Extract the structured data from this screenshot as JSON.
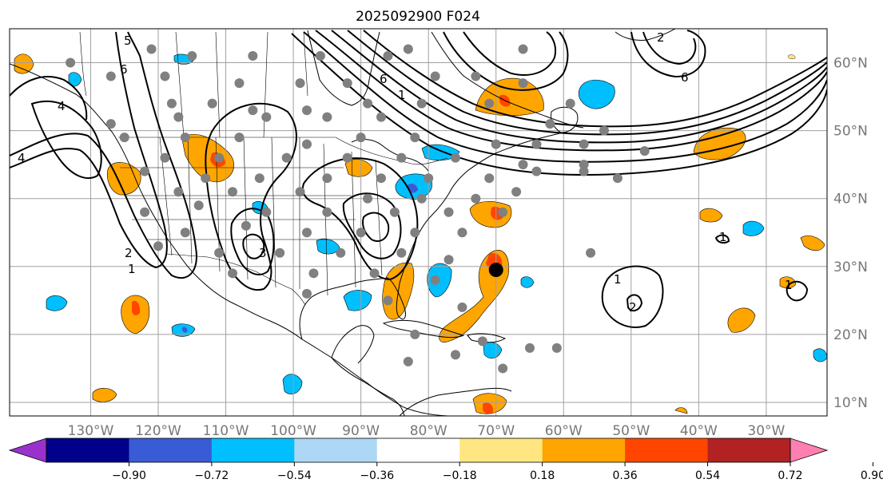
{
  "title": "2025092900 F024",
  "map": {
    "lon_range": [
      -142,
      -21
    ],
    "lat_range": [
      8,
      65
    ],
    "lat_labels": [
      "10°N",
      "20°N",
      "30°N",
      "40°N",
      "50°N",
      "60°N"
    ],
    "lat_values": [
      10,
      20,
      30,
      40,
      50,
      60
    ],
    "lon_labels": [
      "130°W",
      "120°W",
      "110°W",
      "100°W",
      "90°W",
      "80°W",
      "70°W",
      "60°W",
      "50°W",
      "40°W",
      "30°W"
    ],
    "lon_values": [
      -130,
      -120,
      -110,
      -100,
      -90,
      -80,
      -70,
      -60,
      -50,
      -40,
      -30
    ],
    "contour_labels": [
      "4",
      "6",
      "5",
      "2",
      "1",
      "3",
      "6",
      "1",
      "6",
      "2",
      "1",
      "1",
      "2",
      "1",
      "4"
    ],
    "storm_center": {
      "lon": -70,
      "lat": 29.5
    }
  },
  "colorbar": {
    "ticks": [
      "−0.90",
      "−0.72",
      "−0.54",
      "−0.36",
      "−0.18",
      "0.18",
      "0.36",
      "0.54",
      "0.72",
      "0.90"
    ],
    "colors": [
      "#9932cc",
      "#00008b",
      "#3a5bd6",
      "#00bfff",
      "#add8f5",
      "#ffffff",
      "#ffe680",
      "#ffa500",
      "#ff4500",
      "#b22222",
      "#ff80b0"
    ]
  },
  "colors": {
    "orange": "#ffa500",
    "red": "#ff4500",
    "light_orange": "#ffe680",
    "cyan": "#00bfff",
    "blue": "#3a5bd6",
    "grid": "#a0a0a0",
    "label_gray": "#777777"
  },
  "stations": [
    [
      -121,
      62
    ],
    [
      -115,
      61
    ],
    [
      -106,
      61
    ],
    [
      -96,
      61
    ],
    [
      -86,
      61
    ],
    [
      -83,
      62
    ],
    [
      -66,
      62
    ],
    [
      -133,
      60
    ],
    [
      -127,
      58
    ],
    [
      -119,
      58
    ],
    [
      -108,
      57
    ],
    [
      -99,
      57
    ],
    [
      -92,
      57
    ],
    [
      -79,
      58
    ],
    [
      -73,
      58
    ],
    [
      -66,
      57
    ],
    [
      -118,
      54
    ],
    [
      -112,
      54
    ],
    [
      -106,
      53
    ],
    [
      -98,
      53
    ],
    [
      -89,
      54
    ],
    [
      -81,
      54
    ],
    [
      -71,
      54
    ],
    [
      -59,
      54
    ],
    [
      -127,
      51
    ],
    [
      -117,
      52
    ],
    [
      -104,
      52
    ],
    [
      -95,
      52
    ],
    [
      -87,
      52
    ],
    [
      -62,
      51
    ],
    [
      -54,
      50
    ],
    [
      -125,
      49
    ],
    [
      -116,
      49
    ],
    [
      -108,
      49
    ],
    [
      -98,
      48
    ],
    [
      -90,
      49
    ],
    [
      -82,
      49
    ],
    [
      -70,
      48
    ],
    [
      -64,
      48
    ],
    [
      -57,
      48
    ],
    [
      -48,
      47
    ],
    [
      -119,
      46
    ],
    [
      -111,
      46
    ],
    [
      -101,
      46
    ],
    [
      -92,
      46
    ],
    [
      -84,
      46
    ],
    [
      -76,
      46
    ],
    [
      -66,
      45
    ],
    [
      -57,
      45
    ],
    [
      -122,
      44
    ],
    [
      -113,
      43
    ],
    [
      -105,
      43
    ],
    [
      -95,
      43
    ],
    [
      -87,
      43
    ],
    [
      -80,
      43
    ],
    [
      -71,
      43
    ],
    [
      -64,
      44
    ],
    [
      -57,
      44
    ],
    [
      -52,
      43
    ],
    [
      -117,
      41
    ],
    [
      -109,
      41
    ],
    [
      -99,
      41
    ],
    [
      -89,
      40
    ],
    [
      -81,
      40
    ],
    [
      -73,
      40
    ],
    [
      -67,
      41
    ],
    [
      -122,
      38
    ],
    [
      -114,
      39
    ],
    [
      -104,
      38
    ],
    [
      -95,
      38
    ],
    [
      -85,
      38
    ],
    [
      -77,
      38
    ],
    [
      -69,
      38
    ],
    [
      -116,
      35
    ],
    [
      -107,
      36
    ],
    [
      -98,
      35
    ],
    [
      -90,
      35
    ],
    [
      -82,
      35
    ],
    [
      -75,
      35
    ],
    [
      -120,
      33
    ],
    [
      -111,
      32
    ],
    [
      -102,
      32
    ],
    [
      -93,
      32
    ],
    [
      -84,
      32
    ],
    [
      -77,
      31
    ],
    [
      -56,
      32
    ],
    [
      -109,
      29
    ],
    [
      -97,
      29
    ],
    [
      -88,
      29
    ],
    [
      -79,
      28
    ],
    [
      -98,
      26
    ],
    [
      -86,
      25
    ],
    [
      -75,
      24
    ],
    [
      -82,
      20
    ],
    [
      -72,
      19
    ],
    [
      -65,
      18
    ],
    [
      -61,
      18
    ],
    [
      -76,
      17
    ],
    [
      -69,
      15
    ],
    [
      -83,
      16
    ]
  ]
}
